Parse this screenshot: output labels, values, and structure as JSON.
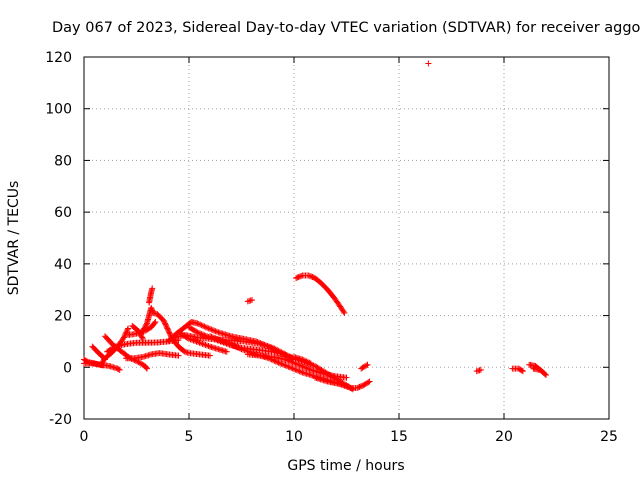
{
  "chart_data": {
    "type": "scatter",
    "title": "Day 067 of 2023, Sidereal Day-to-day VTEC variation (SDTVAR) for receiver aggo",
    "xlabel": "GPS time / hours",
    "ylabel": "SDTVAR / TECUs",
    "xlim": [
      0,
      25
    ],
    "ylim": [
      -20,
      120
    ],
    "xticks": [
      0,
      5,
      10,
      15,
      20,
      25
    ],
    "yticks": [
      -20,
      0,
      20,
      40,
      60,
      80,
      100,
      120
    ],
    "grid": true,
    "series": [
      {
        "name": "SDTVAR",
        "marker": "+",
        "color": "#ff0000",
        "tracks": [
          [
            [
              0.0,
              1.5
            ],
            [
              0.4,
              1.5
            ],
            [
              0.8,
              1.0
            ],
            [
              1.2,
              0.5
            ],
            [
              1.6,
              -0.5
            ],
            [
              1.7,
              -1.0
            ]
          ],
          [
            [
              0.0,
              3.0
            ],
            [
              0.2,
              2.0
            ],
            [
              0.5,
              1.5
            ],
            [
              0.9,
              0.7
            ]
          ],
          [
            [
              0.4,
              8.0
            ],
            [
              0.7,
              5.5
            ],
            [
              0.9,
              4.0
            ],
            [
              1.0,
              3.0
            ]
          ],
          [
            [
              0.8,
              1.0
            ],
            [
              1.0,
              3.5
            ],
            [
              1.3,
              5.5
            ],
            [
              1.6,
              8.0
            ],
            [
              1.9,
              11.5
            ],
            [
              2.1,
              15.0
            ]
          ],
          [
            [
              1.0,
              12.0
            ],
            [
              1.4,
              8.5
            ],
            [
              1.8,
              6.0
            ],
            [
              2.2,
              3.5
            ],
            [
              2.6,
              2.0
            ],
            [
              2.9,
              0.5
            ],
            [
              3.0,
              -0.5
            ]
          ],
          [
            [
              1.1,
              6.0
            ],
            [
              1.5,
              8.0
            ],
            [
              2.0,
              9.0
            ],
            [
              2.5,
              9.5
            ],
            [
              3.0,
              9.5
            ],
            [
              3.5,
              9.6
            ],
            [
              4.0,
              10.0
            ],
            [
              4.5,
              10.5
            ]
          ],
          [
            [
              2.0,
              3.5
            ],
            [
              2.4,
              3.5
            ],
            [
              2.8,
              4.0
            ],
            [
              3.2,
              5.0
            ],
            [
              3.6,
              5.5
            ],
            [
              4.0,
              5.0
            ],
            [
              4.5,
              4.5
            ]
          ],
          [
            [
              2.1,
              12.5
            ],
            [
              2.5,
              13.0
            ],
            [
              2.9,
              14.0
            ],
            [
              3.2,
              15.5
            ],
            [
              3.4,
              17.5
            ]
          ],
          [
            [
              2.3,
              16.0
            ],
            [
              2.6,
              14.0
            ],
            [
              2.8,
              11.0
            ]
          ],
          [
            [
              2.8,
              14.0
            ],
            [
              3.0,
              17.0
            ],
            [
              3.1,
              20.0
            ],
            [
              3.2,
              23.0
            ],
            [
              3.3,
              21.0
            ],
            [
              3.5,
              20.5
            ],
            [
              3.8,
              18.0
            ],
            [
              4.0,
              14.5
            ],
            [
              4.2,
              11.0
            ],
            [
              4.5,
              8.0
            ],
            [
              4.8,
              6.0
            ],
            [
              5.0,
              5.5
            ],
            [
              5.5,
              5.0
            ],
            [
              6.0,
              4.5
            ]
          ],
          [
            [
              3.1,
              25.0
            ],
            [
              3.15,
              27.0
            ],
            [
              3.2,
              29.0
            ],
            [
              3.25,
              30.5
            ]
          ],
          [
            [
              4.0,
              10.0
            ],
            [
              4.4,
              13.0
            ],
            [
              4.8,
              15.5
            ],
            [
              5.1,
              17.5
            ],
            [
              5.4,
              17.0
            ],
            [
              5.8,
              15.5
            ],
            [
              6.4,
              13.5
            ],
            [
              7.0,
              12.0
            ],
            [
              7.6,
              11.0
            ],
            [
              8.2,
              10.0
            ],
            [
              8.8,
              8.0
            ],
            [
              9.2,
              6.0
            ]
          ],
          [
            [
              4.3,
              11.5
            ],
            [
              4.8,
              12.5
            ],
            [
              5.4,
              11.5
            ],
            [
              6.0,
              11.0
            ],
            [
              6.8,
              10.5
            ],
            [
              7.6,
              10.0
            ],
            [
              8.4,
              9.0
            ],
            [
              9.0,
              7.5
            ],
            [
              9.6,
              5.0
            ],
            [
              10.0,
              3.0
            ]
          ],
          [
            [
              4.6,
              13.0
            ],
            [
              5.0,
              11.0
            ],
            [
              5.5,
              9.5
            ],
            [
              6.0,
              8.0
            ],
            [
              6.4,
              7.0
            ],
            [
              6.8,
              6.0
            ]
          ],
          [
            [
              5.0,
              15.5
            ],
            [
              5.4,
              13.5
            ],
            [
              6.0,
              11.5
            ],
            [
              6.5,
              10.0
            ],
            [
              7.0,
              8.5
            ],
            [
              7.5,
              7.5
            ],
            [
              8.0,
              7.0
            ],
            [
              8.5,
              6.5
            ],
            [
              9.0,
              6.0
            ],
            [
              9.5,
              5.0
            ],
            [
              10.0,
              3.5
            ],
            [
              10.5,
              2.0
            ],
            [
              11.0,
              0.5
            ],
            [
              11.5,
              -2.0
            ],
            [
              12.0,
              -4.5
            ],
            [
              12.5,
              -7.0
            ],
            [
              12.8,
              -8.5
            ]
          ],
          [
            [
              6.0,
              12.0
            ],
            [
              6.8,
              9.5
            ],
            [
              7.5,
              7.0
            ],
            [
              8.2,
              5.0
            ],
            [
              8.8,
              3.5
            ],
            [
              9.2,
              2.0
            ],
            [
              9.8,
              0.0
            ],
            [
              10.4,
              -2.0
            ],
            [
              11.0,
              -3.5
            ],
            [
              11.6,
              -5.0
            ],
            [
              12.2,
              -6.5
            ],
            [
              12.6,
              -7.5
            ]
          ],
          [
            [
              7.8,
              5.0
            ],
            [
              8.4,
              4.5
            ],
            [
              9.0,
              4.0
            ],
            [
              9.6,
              3.0
            ],
            [
              10.2,
              1.0
            ],
            [
              10.8,
              -1.0
            ],
            [
              11.4,
              -2.5
            ],
            [
              12.0,
              -3.5
            ],
            [
              12.5,
              -4.0
            ]
          ],
          [
            [
              10.0,
              4.0
            ],
            [
              10.4,
              3.0
            ],
            [
              10.8,
              1.5
            ]
          ],
          [
            [
              11.0,
              -4.0
            ],
            [
              11.6,
              -5.5
            ],
            [
              12.2,
              -6.5
            ],
            [
              12.7,
              -8.0
            ],
            [
              13.0,
              -8.0
            ],
            [
              13.3,
              -7.0
            ],
            [
              13.6,
              -5.5
            ]
          ],
          [
            [
              10.1,
              34.5
            ],
            [
              10.4,
              35.5
            ],
            [
              10.7,
              35.5
            ],
            [
              11.0,
              34.5
            ],
            [
              11.3,
              32.5
            ],
            [
              11.6,
              30.0
            ],
            [
              11.9,
              27.0
            ],
            [
              12.2,
              23.5
            ],
            [
              12.4,
              21.0
            ]
          ],
          [
            [
              7.8,
              25.5
            ],
            [
              8.0,
              26.0
            ]
          ],
          [
            [
              13.2,
              -0.5
            ],
            [
              13.5,
              1.0
            ]
          ],
          [
            [
              16.4,
              117.5
            ]
          ],
          [
            [
              18.7,
              -1.5
            ],
            [
              18.9,
              -1.0
            ]
          ],
          [
            [
              20.4,
              -0.5
            ],
            [
              20.7,
              -0.5
            ],
            [
              20.9,
              -1.5
            ]
          ],
          [
            [
              21.2,
              1.0
            ],
            [
              21.5,
              0.5
            ],
            [
              21.8,
              -1.5
            ],
            [
              22.0,
              -3.0
            ]
          ],
          [
            [
              21.4,
              -0.5
            ],
            [
              21.7,
              -1.0
            ]
          ]
        ]
      }
    ]
  }
}
